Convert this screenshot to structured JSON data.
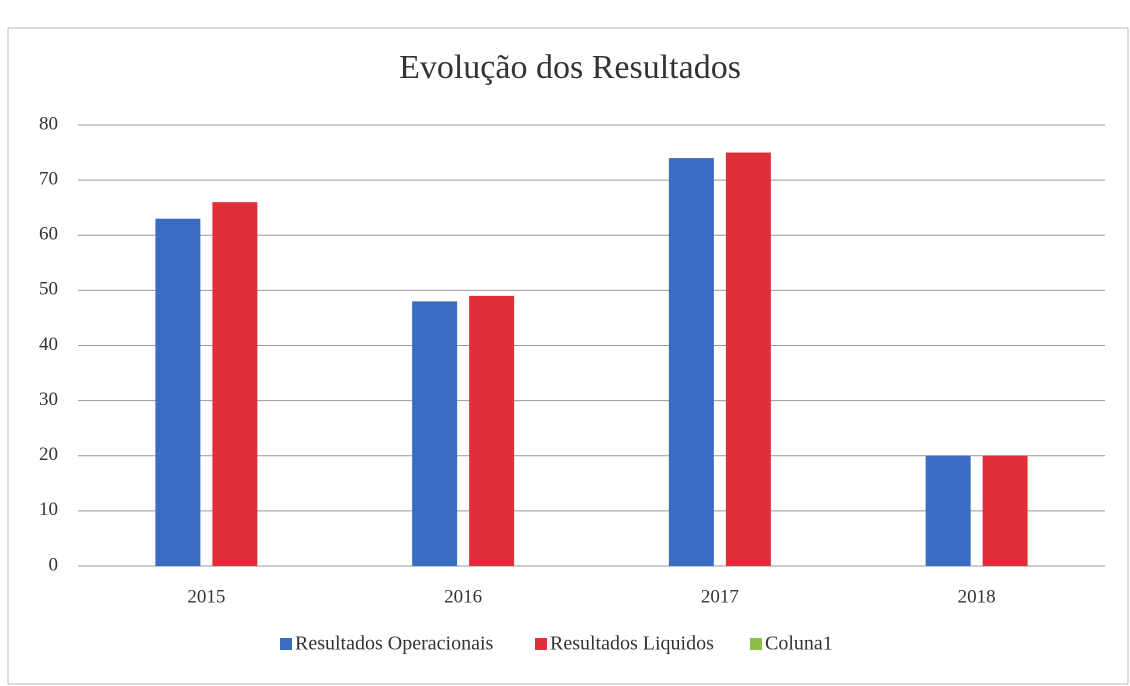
{
  "chart_data": {
    "type": "bar",
    "title": "Evolução dos Resultados",
    "categories": [
      "2015",
      "2016",
      "2017",
      "2018"
    ],
    "series": [
      {
        "name": "Resultados Operacionais",
        "color": "#3a6cc2",
        "values": [
          63,
          48,
          74,
          20
        ]
      },
      {
        "name": "Resultados Liquidos",
        "color": "#df2f38",
        "values": [
          66,
          49,
          75,
          20
        ]
      },
      {
        "name": "Coluna1",
        "color": "#8cc04a",
        "values": [
          null,
          null,
          null,
          null
        ]
      }
    ],
    "ylim": [
      0,
      80
    ],
    "yticks": [
      0,
      10,
      20,
      30,
      40,
      50,
      60,
      70,
      80
    ],
    "grid": true,
    "legend": "bottom"
  }
}
